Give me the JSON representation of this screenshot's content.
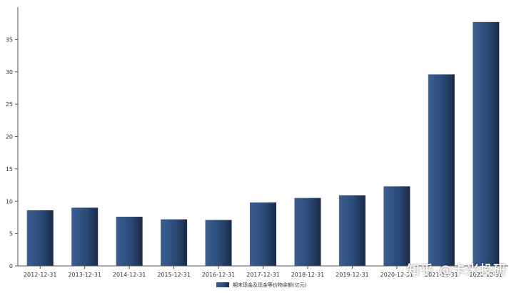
{
  "chart_data": {
    "type": "bar",
    "categories": [
      "2012-12-31",
      "2013-12-31",
      "2014-12-31",
      "2015-12-31",
      "2016-12-31",
      "2017-12-31",
      "2018-12-31",
      "2019-12-31",
      "2020-12-31",
      "2021-12-31",
      "2022-12-31"
    ],
    "series": [
      {
        "name": "期末现金及现金等价物余额(亿元)",
        "values": [
          8.6,
          9.0,
          7.6,
          7.2,
          7.1,
          9.8,
          10.5,
          10.9,
          12.3,
          29.6,
          37.7
        ]
      }
    ],
    "yticks": [
      0,
      5,
      10,
      15,
      20,
      25,
      30,
      35
    ],
    "ylim": [
      0,
      40
    ],
    "grid": false,
    "legend": "bottom-center",
    "colors": {
      "bar_dark": "#1b2a45",
      "bar_mid": "#2b4b78",
      "bar_light": "#3a5f92",
      "axis": "#555555"
    }
  },
  "watermark": "知乎 @卡米投研"
}
